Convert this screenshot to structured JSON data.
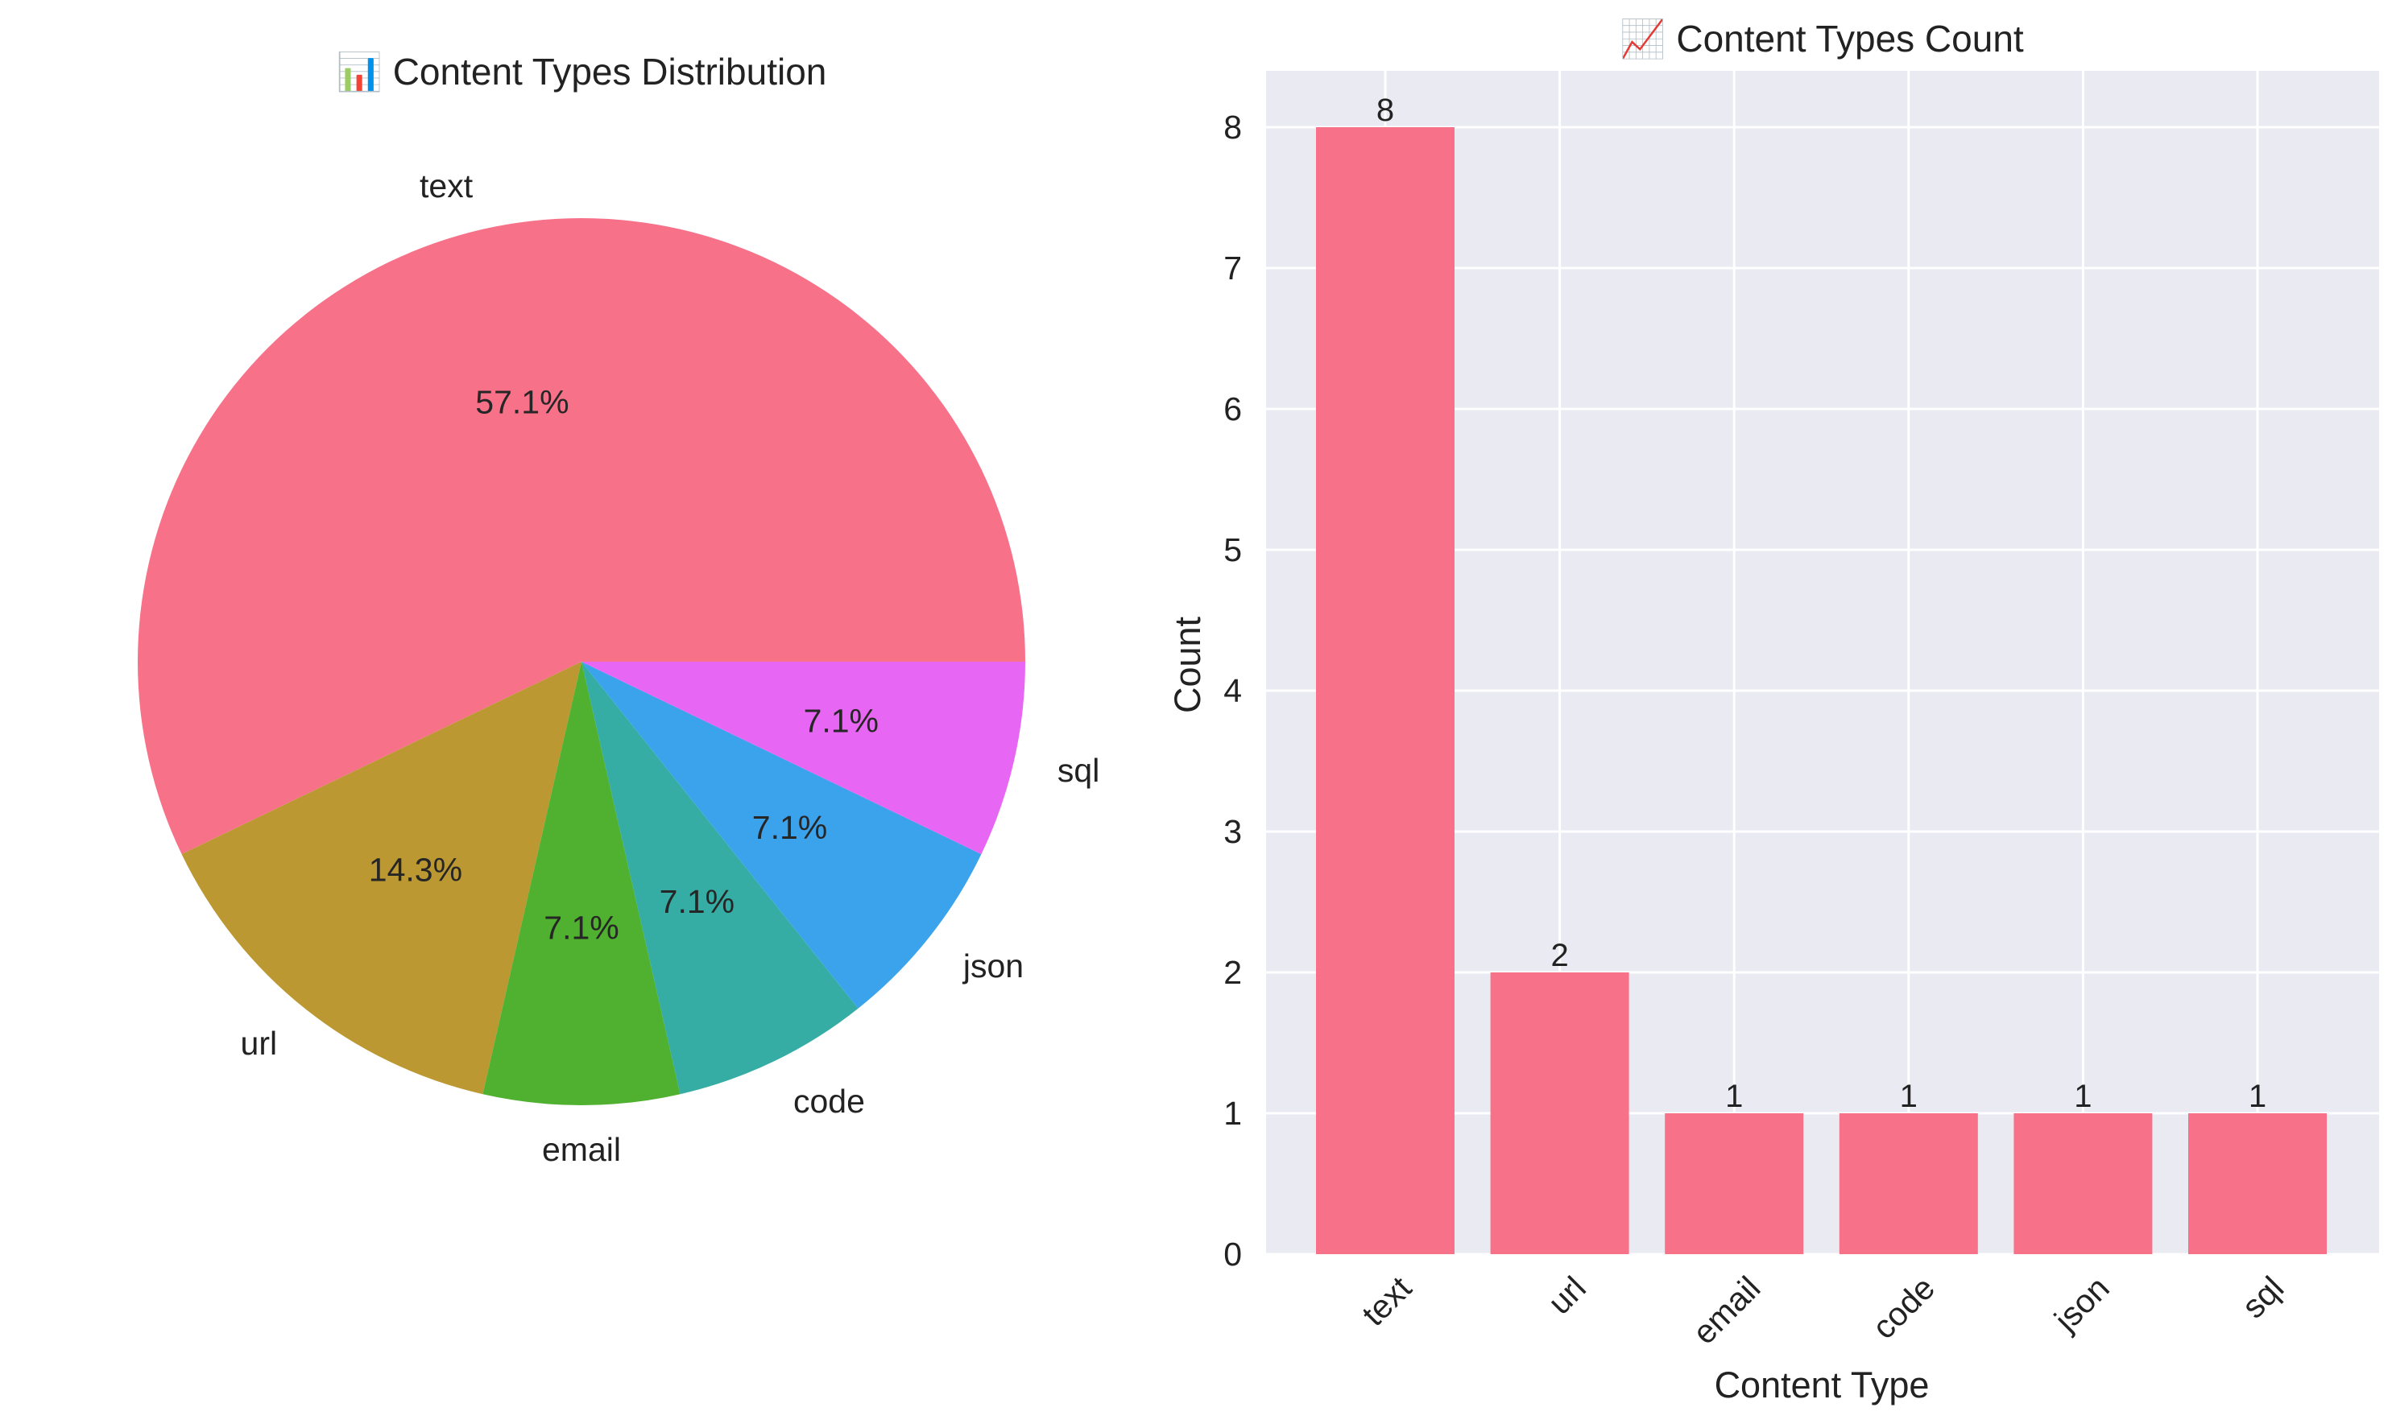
{
  "chart_data": [
    {
      "type": "pie",
      "title": "📊 Content Types Distribution",
      "categories": [
        "text",
        "url",
        "email",
        "code",
        "json",
        "sql"
      ],
      "values": [
        8,
        2,
        1,
        1,
        1,
        1
      ],
      "percent_labels": [
        "57.1%",
        "14.3%",
        "7.1%",
        "7.1%",
        "7.1%",
        "7.1%"
      ],
      "colors": [
        "#f77189",
        "#bb9832",
        "#50b131",
        "#36ada4",
        "#3ba3ec",
        "#e866f4"
      ]
    },
    {
      "type": "bar",
      "title": "📈 Content Types Count",
      "categories": [
        "text",
        "url",
        "email",
        "code",
        "json",
        "sql"
      ],
      "values": [
        8,
        2,
        1,
        1,
        1,
        1
      ],
      "xlabel": "Content Type",
      "ylabel": "Count",
      "ylim": [
        0,
        8.4
      ],
      "yticks": [
        0,
        1,
        2,
        3,
        4,
        5,
        6,
        7,
        8
      ],
      "grid": true,
      "bar_color": "#f77189",
      "background": "#eaeaf2"
    }
  ]
}
